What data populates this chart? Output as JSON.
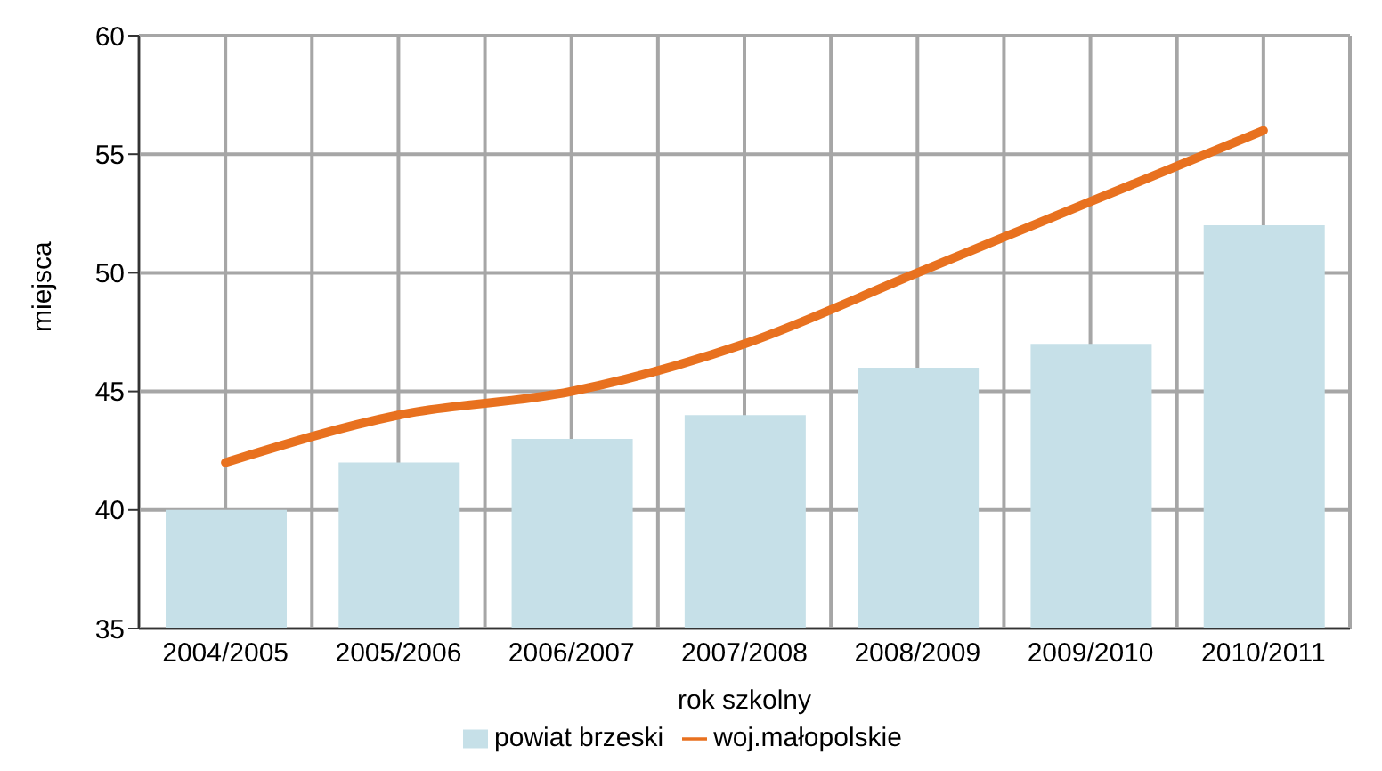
{
  "chart_data": {
    "type": "bar",
    "xlabel": "rok szkolny",
    "ylabel": "miejsca",
    "categories": [
      "2004/2005",
      "2005/2006",
      "2006/2007",
      "2007/2008",
      "2008/2009",
      "2009/2010",
      "2010/2011"
    ],
    "series": [
      {
        "name": "powiat brzeski",
        "color": "#c6e0e8",
        "values": [
          40,
          42,
          43,
          44,
          46,
          47,
          52
        ]
      },
      {
        "name": "woj.małopolskie",
        "type": "line",
        "color": "#e8711f",
        "values": [
          42,
          44,
          45,
          47,
          50,
          53,
          56
        ]
      }
    ],
    "ylim": [
      35,
      60
    ],
    "yticks": [
      35,
      40,
      45,
      50,
      55,
      60
    ],
    "grid": true,
    "legend": "bottom",
    "marker": "none",
    "line_style": "solid"
  }
}
